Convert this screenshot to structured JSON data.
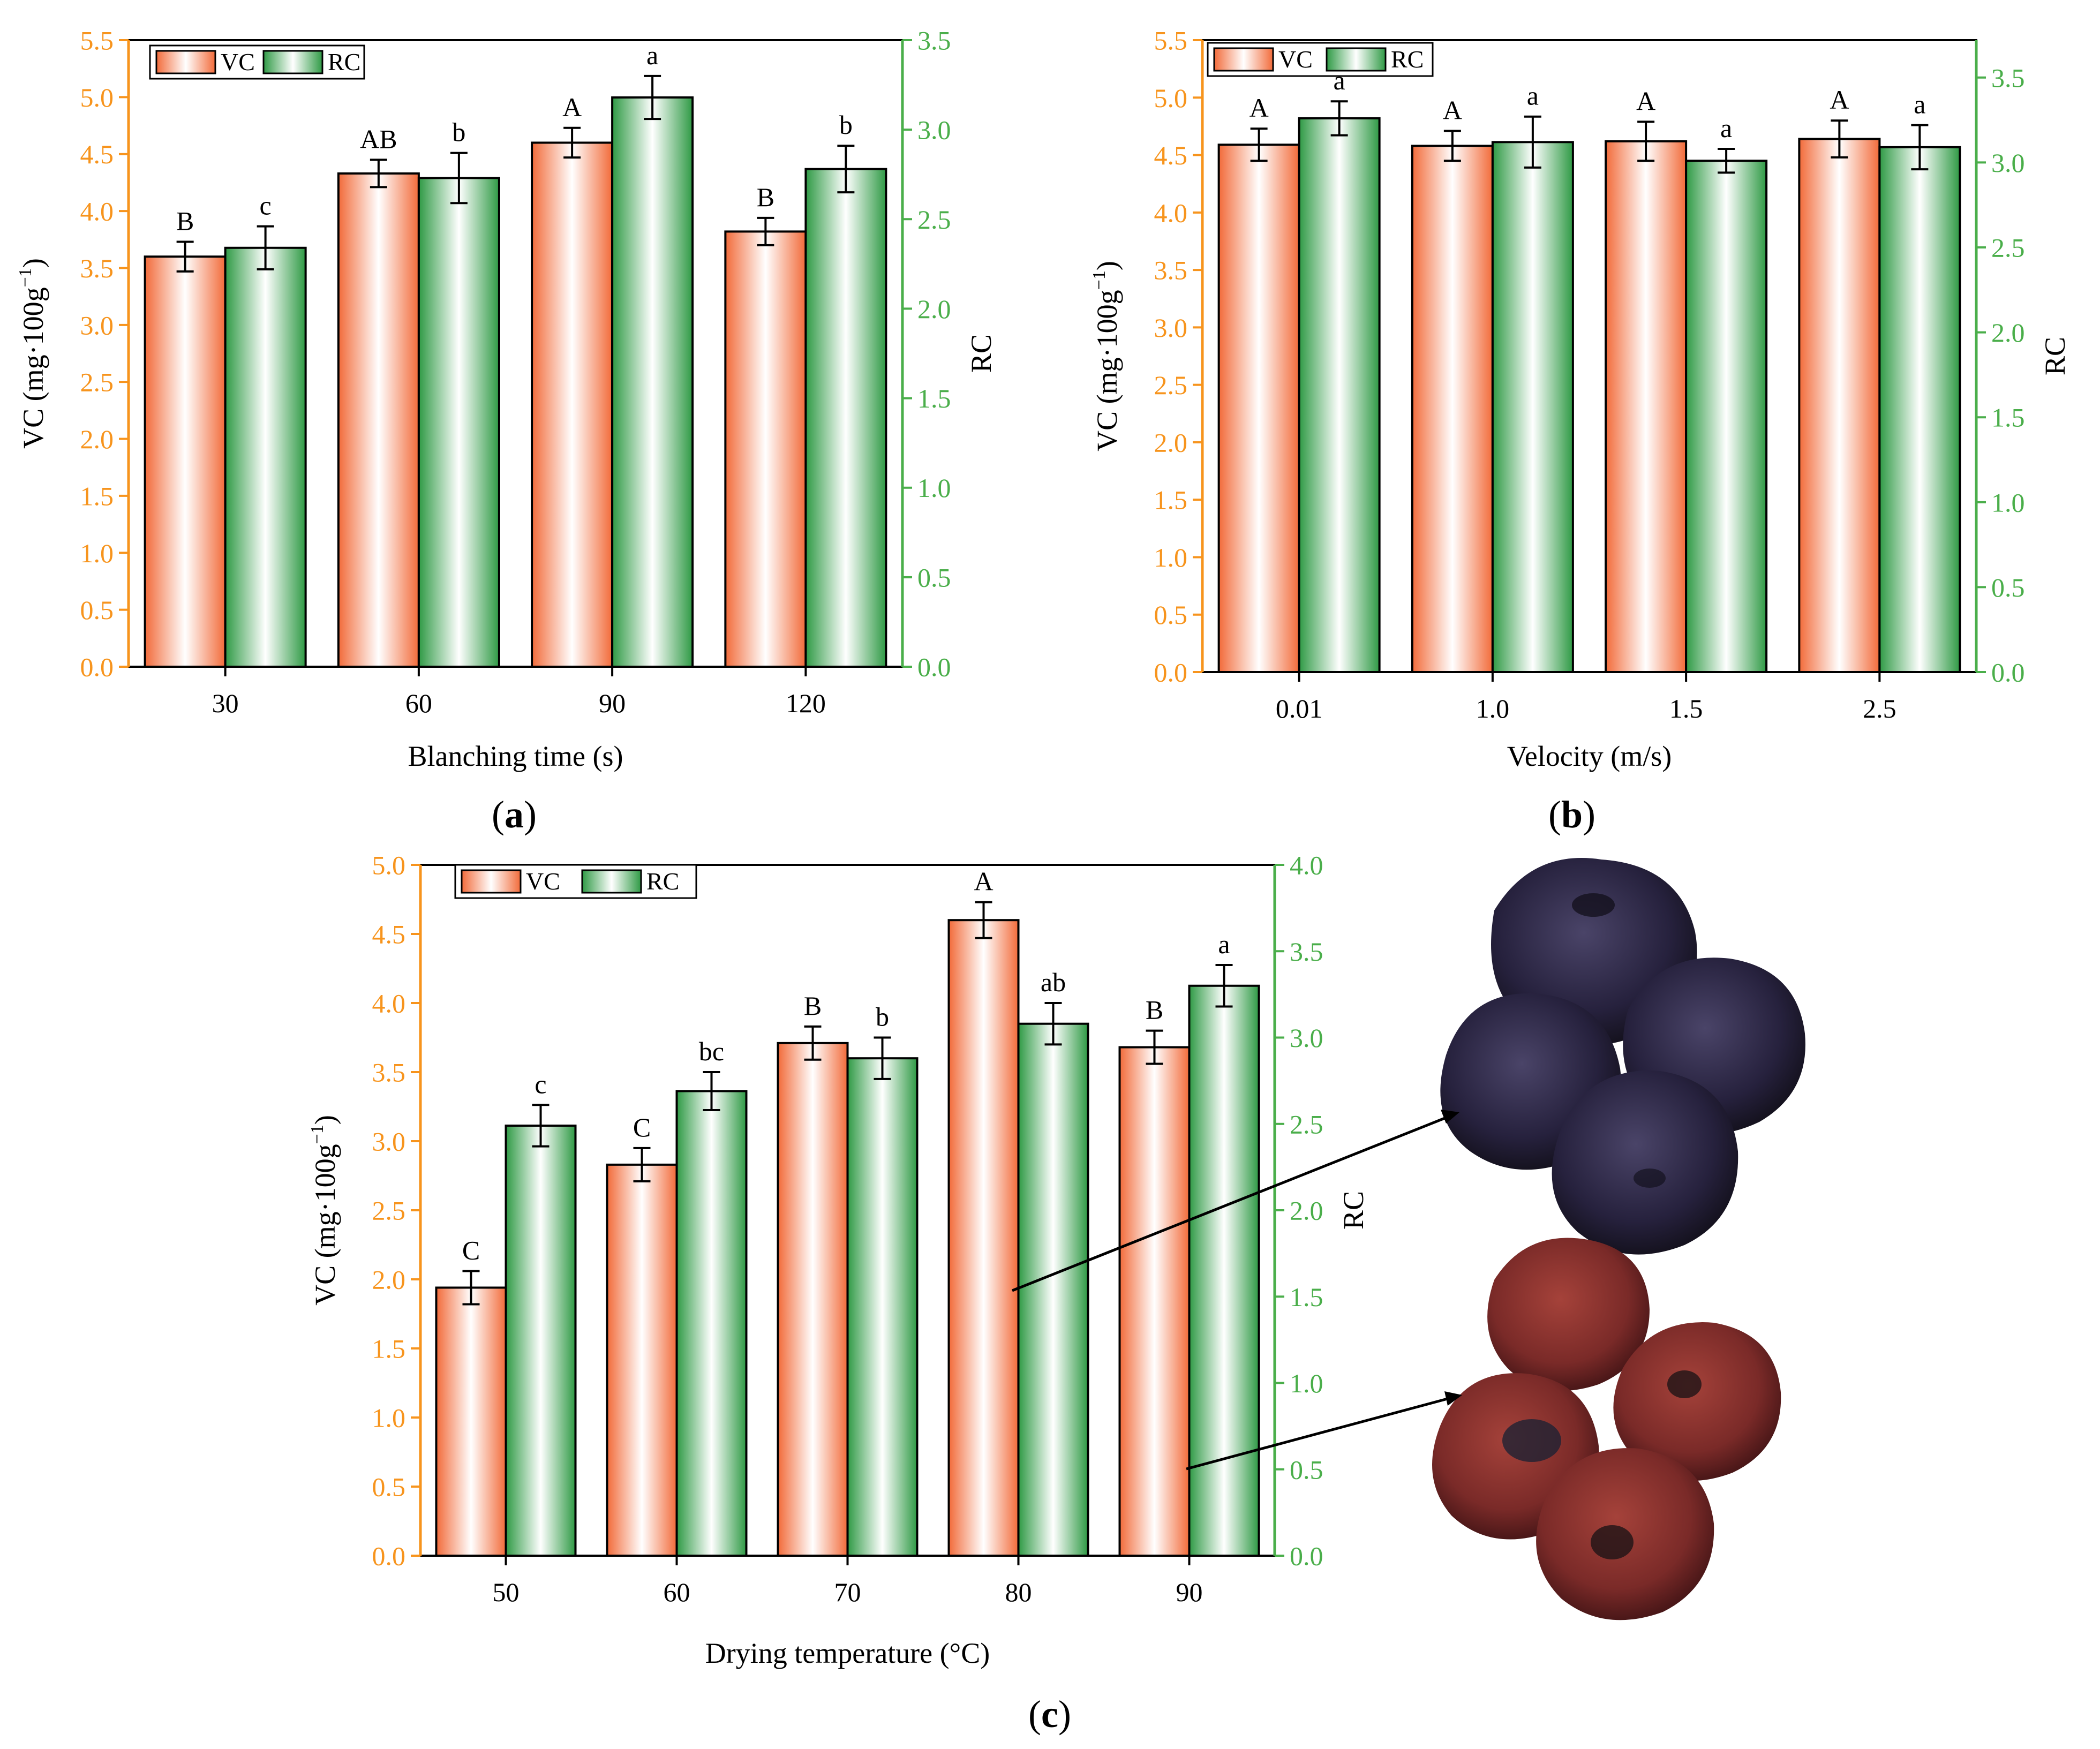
{
  "colors": {
    "vc_axis": "#f7941d",
    "rc_axis": "#4aae4a",
    "vc_bar_edge": "#f26b3a",
    "vc_bar_mid": "#ffffff",
    "rc_bar_edge": "#2f9a45",
    "rc_bar_mid": "#ffffff",
    "frame": "#000000"
  },
  "photo": {
    "upper_icon": "dried-dark-purple-jujubes-photo",
    "lower_icon": "dried-red-jujubes-photo"
  },
  "chart_data": [
    {
      "type": "bar",
      "panel_label": "a",
      "categories": [
        "30",
        "60",
        "90",
        "120"
      ],
      "xlabel": "Blanching time (s)",
      "ylabel_left": "VC (mg·100g",
      "ylabel_left_sup": "−1",
      "ylabel_left_end": ")",
      "ylabel_right": "RC",
      "ylim_left": [
        0,
        5.5
      ],
      "ylim_right": [
        0,
        3.5
      ],
      "yticks_left": [
        "0.0",
        "0.5",
        "1.0",
        "1.5",
        "2.0",
        "2.5",
        "3.0",
        "3.5",
        "4.0",
        "4.5",
        "5.0",
        "5.5"
      ],
      "yticks_right": [
        "0.0",
        "0.5",
        "1.0",
        "1.5",
        "2.0",
        "2.5",
        "3.0",
        "3.5"
      ],
      "legend": [
        "VC",
        "RC"
      ],
      "legend_position": "top-left",
      "series": [
        {
          "name": "VC",
          "axis": "left",
          "values": [
            3.6,
            4.33,
            4.6,
            3.82
          ],
          "errors": [
            0.13,
            0.12,
            0.13,
            0.12
          ],
          "letters": [
            "B",
            "AB",
            "A",
            "B"
          ]
        },
        {
          "name": "RC",
          "axis": "right",
          "values": [
            2.34,
            2.73,
            3.18,
            2.78
          ],
          "errors": [
            0.12,
            0.14,
            0.12,
            0.13
          ],
          "letters": [
            "c",
            "b",
            "a",
            "b"
          ]
        }
      ]
    },
    {
      "type": "bar",
      "panel_label": "b",
      "categories": [
        "0.01",
        "1.0",
        "1.5",
        "2.5"
      ],
      "xlabel": "Velocity (m/s)",
      "ylabel_left": "VC (mg·100g",
      "ylabel_left_sup": "−1",
      "ylabel_left_end": ")",
      "ylabel_right": "RC",
      "ylim_left": [
        0,
        5.5
      ],
      "ylim_right": [
        0,
        3.72
      ],
      "yticks_left": [
        "0.0",
        "0.5",
        "1.0",
        "1.5",
        "2.0",
        "2.5",
        "3.0",
        "3.5",
        "4.0",
        "4.5",
        "5.0",
        "5.5"
      ],
      "yticks_right": [
        "0.0",
        "0.5",
        "1.0",
        "1.5",
        "2.0",
        "2.5",
        "3.0",
        "3.5"
      ],
      "legend": [
        "VC",
        "RC"
      ],
      "legend_position": "top-left",
      "series": [
        {
          "name": "VC",
          "axis": "left",
          "values": [
            4.59,
            4.58,
            4.62,
            4.64
          ],
          "errors": [
            0.14,
            0.13,
            0.17,
            0.16
          ],
          "letters": [
            "A",
            "A",
            "A",
            "A"
          ]
        },
        {
          "name": "RC",
          "axis": "right",
          "values": [
            3.26,
            3.12,
            3.01,
            3.09
          ],
          "errors": [
            0.1,
            0.15,
            0.07,
            0.13
          ],
          "letters": [
            "a",
            "a",
            "a",
            "a"
          ]
        }
      ]
    },
    {
      "type": "bar",
      "panel_label": "c",
      "categories": [
        "50",
        "60",
        "70",
        "80",
        "90"
      ],
      "xlabel": "Drying temperature (°C)",
      "ylabel_left": "VC (mg·100g",
      "ylabel_left_sup": "−1",
      "ylabel_left_end": ")",
      "ylabel_right": "RC",
      "ylim_left": [
        0,
        5.0
      ],
      "ylim_right": [
        0,
        4.0
      ],
      "yticks_left": [
        "0.0",
        "0.5",
        "1.0",
        "1.5",
        "2.0",
        "2.5",
        "3.0",
        "3.5",
        "4.0",
        "4.5",
        "5.0"
      ],
      "yticks_right": [
        "0.0",
        "0.5",
        "1.0",
        "1.5",
        "2.0",
        "2.5",
        "3.0",
        "3.5",
        "4.0"
      ],
      "legend": [
        "VC",
        "RC"
      ],
      "legend_position": "top-left",
      "series": [
        {
          "name": "VC",
          "axis": "left",
          "values": [
            1.94,
            2.83,
            3.71,
            4.6,
            3.68
          ],
          "errors": [
            0.12,
            0.12,
            0.12,
            0.13,
            0.12
          ],
          "letters": [
            "C",
            "C",
            "B",
            "A",
            "B"
          ]
        },
        {
          "name": "RC",
          "axis": "right",
          "values": [
            2.49,
            2.69,
            2.88,
            3.08,
            3.3
          ],
          "errors": [
            0.12,
            0.11,
            0.12,
            0.12,
            0.12
          ],
          "letters": [
            "c",
            "bc",
            "b",
            "ab",
            "a"
          ]
        }
      ]
    }
  ]
}
